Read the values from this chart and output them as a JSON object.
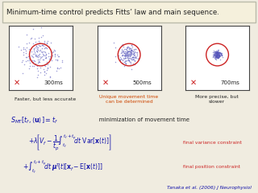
{
  "title": "Minimum-time control predicts Fitts’ law and main sequence.",
  "bg_color": "#f0ece0",
  "title_bg": "#f5f0dc",
  "box_bg": "#ffffff",
  "box_border": "#444444",
  "scatter_color": "#5555bb",
  "circle_color": "#cc2222",
  "x_mark_color": "#cc2222",
  "panels": [
    {
      "ms": "300ms",
      "scatter_spread": 0.55,
      "circle_r": 0.35,
      "label": "Faster, but less accurate",
      "label_color": "#222222"
    },
    {
      "ms": "500ms",
      "scatter_spread": 0.28,
      "circle_r": 0.35,
      "label": "Unique movement time\ncan be determined",
      "label_color": "#cc4400"
    },
    {
      "ms": "700ms",
      "scatter_spread": 0.12,
      "circle_r": 0.35,
      "label": "More precise, but\nslower",
      "label_color": "#222222"
    }
  ],
  "eq_line1_math": "$S_{MT}\\left[t_f, \\langle\\mathbf{u}\\rangle\\right] = t_f$",
  "eq_line1_text": "   minimization of movement time",
  "eq_line2": "$+\\lambda\\!\\left[V_f - \\dfrac{1}{t_p}\\!\\int_{t_f}^{t_f+t_p}\\!dt\\;\\mathrm{Var}[\\mathbf{x}(t)]\\right]$",
  "eq_line2_note": "final variance constraint",
  "eq_line3": "$+\\int_{t_f}^{t_f+t_p}\\!dt\\;\\boldsymbol{\\mu}^{\\!T}\\!(t)\\!\\left[\\mathbf{x}_f - \\mathrm{E}[\\mathbf{x}(t)]\\right]$",
  "eq_line3_note": "final position constraint",
  "citation": "Tanaka et al. (2006) J Neurophysiol",
  "eq_color": "#1111aa",
  "note_color": "#cc2222",
  "cite_color": "#1111aa",
  "text_color": "#222222"
}
